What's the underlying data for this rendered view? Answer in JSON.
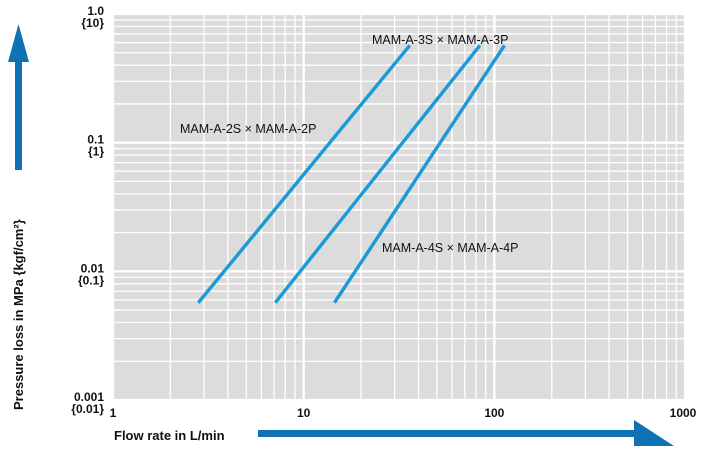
{
  "chart_data": {
    "type": "line",
    "x_scale": "log",
    "y_scale": "log",
    "xlim": [
      1,
      1000
    ],
    "ylim": [
      0.001,
      1.0
    ],
    "grid": true,
    "xlabel": "Flow rate in L/min",
    "ylabel": "Pressure loss in MPa {kgf/cm²}",
    "x_ticks": [
      {
        "value": 1,
        "label": "1"
      },
      {
        "value": 10,
        "label": "10"
      },
      {
        "value": 100,
        "label": "100"
      },
      {
        "value": 1000,
        "label": "1000"
      }
    ],
    "y_ticks": [
      {
        "value": 1.0,
        "label": "1.0",
        "sub": "{10}"
      },
      {
        "value": 0.1,
        "label": "0.1",
        "sub": "{1}"
      },
      {
        "value": 0.01,
        "label": "0.01",
        "sub": "{0.1}"
      },
      {
        "value": 0.001,
        "label": "0.001",
        "sub": "{0.01}"
      }
    ],
    "series": [
      {
        "name": "MAM-A-2S × MAM-A-2P",
        "x": [
          2.8,
          36
        ],
        "y": [
          0.0057,
          0.57
        ]
      },
      {
        "name": "MAM-A-3S × MAM-A-3P",
        "x": [
          7.1,
          84
        ],
        "y": [
          0.0057,
          0.57
        ]
      },
      {
        "name": "MAM-A-4S × MAM-A-4P",
        "x": [
          14.5,
          113
        ],
        "y": [
          0.0057,
          0.57
        ]
      }
    ],
    "colors": {
      "line": "#1a9ad6",
      "plot_bg": "#dcdcdc",
      "grid": "#ffffff",
      "arrow": "#0f72b5"
    }
  }
}
